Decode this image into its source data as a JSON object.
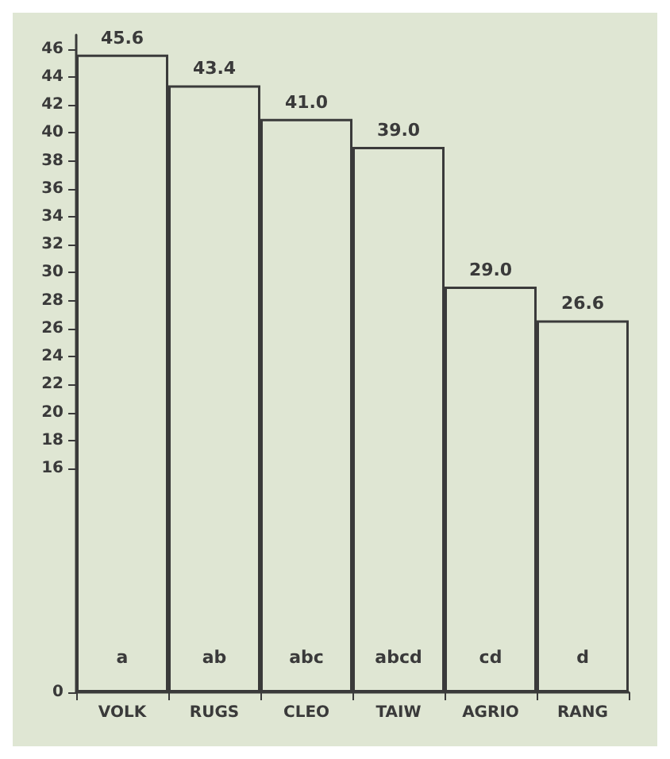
{
  "chart_data": {
    "type": "bar",
    "categories": [
      "VOLK",
      "RUGS",
      "CLEO",
      "TAIW",
      "AGRIO",
      "RANG"
    ],
    "values": [
      45.6,
      43.4,
      41.0,
      39.0,
      29.0,
      26.6
    ],
    "value_labels": [
      "45.6",
      "43.4",
      "41.0",
      "39.0",
      "29.0",
      "26.6"
    ],
    "color": "#dfe6d3",
    "ylim": [
      0,
      47
    ],
    "yticks": [
      0,
      16,
      18,
      20,
      22,
      24,
      26,
      28,
      30,
      32,
      34,
      36,
      38,
      40,
      42,
      44,
      46
    ],
    "grid": false,
    "annotations": [
      "a",
      "ab",
      "abc",
      "abcd",
      "cd",
      "d"
    ]
  }
}
